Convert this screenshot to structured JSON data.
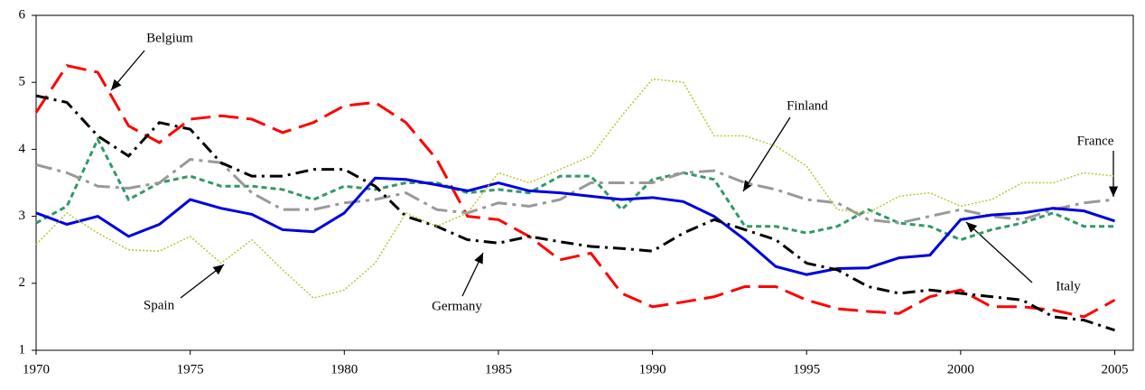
{
  "chart_data": {
    "type": "line",
    "x": [
      1970,
      1971,
      1972,
      1973,
      1974,
      1975,
      1976,
      1977,
      1978,
      1979,
      1980,
      1981,
      1982,
      1983,
      1984,
      1985,
      1986,
      1987,
      1988,
      1989,
      1990,
      1991,
      1992,
      1993,
      1994,
      1995,
      1996,
      1997,
      1998,
      1999,
      2000,
      2001,
      2002,
      2003,
      2004,
      2005
    ],
    "xlim": [
      1970,
      2005.6
    ],
    "xticks": [
      1970,
      1975,
      1980,
      1985,
      1990,
      1995,
      2000,
      2005
    ],
    "ylim": [
      1,
      6
    ],
    "yticks": [
      1,
      2,
      3,
      4,
      5,
      6
    ],
    "series": [
      {
        "name": "Belgium",
        "color": "#ff0000",
        "dash": "22 9",
        "width": 3,
        "values": [
          4.55,
          5.25,
          5.15,
          4.35,
          4.1,
          4.45,
          4.5,
          4.45,
          4.25,
          4.4,
          4.65,
          4.7,
          4.4,
          3.85,
          3.0,
          2.95,
          2.7,
          2.35,
          2.45,
          1.85,
          1.65,
          1.72,
          1.8,
          1.95,
          1.95,
          1.75,
          1.62,
          1.58,
          1.55,
          1.8,
          1.9,
          1.65,
          1.65,
          1.6,
          1.5,
          1.75
        ]
      },
      {
        "name": "Finland",
        "color": "#339966",
        "dash": "6 4",
        "width": 3,
        "values": [
          2.9,
          3.15,
          4.15,
          3.25,
          3.5,
          3.6,
          3.45,
          3.45,
          3.4,
          3.25,
          3.45,
          3.4,
          3.5,
          3.5,
          3.35,
          3.4,
          3.35,
          3.6,
          3.6,
          3.1,
          3.55,
          3.65,
          3.55,
          2.85,
          2.85,
          2.75,
          2.85,
          3.1,
          2.9,
          2.85,
          2.65,
          2.8,
          2.9,
          3.05,
          2.85,
          2.85
        ]
      },
      {
        "name": "France",
        "color": "#999999",
        "dash": "18 6 4 6",
        "width": 3,
        "values": [
          3.77,
          3.65,
          3.45,
          3.42,
          3.5,
          3.85,
          3.8,
          3.35,
          3.1,
          3.1,
          3.2,
          3.25,
          3.35,
          3.1,
          3.05,
          3.2,
          3.15,
          3.25,
          3.5,
          3.5,
          3.5,
          3.65,
          3.68,
          3.5,
          3.4,
          3.25,
          3.2,
          2.95,
          2.9,
          3.0,
          3.1,
          3.0,
          2.95,
          3.1,
          3.2,
          3.25
        ]
      },
      {
        "name": "Italy",
        "color": "#0000dd",
        "dash": "none",
        "width": 3,
        "values": [
          3.05,
          2.88,
          3.0,
          2.7,
          2.88,
          3.25,
          3.12,
          3.03,
          2.8,
          2.77,
          3.05,
          3.57,
          3.55,
          3.47,
          3.38,
          3.5,
          3.38,
          3.35,
          3.3,
          3.25,
          3.28,
          3.22,
          3.0,
          2.65,
          2.25,
          2.13,
          2.22,
          2.23,
          2.38,
          2.42,
          2.95,
          3.02,
          3.05,
          3.12,
          3.08,
          2.93
        ]
      },
      {
        "name": "Germany",
        "color": "#000000",
        "dash": "14 6 3 6",
        "width": 3,
        "values": [
          4.8,
          4.7,
          4.2,
          3.9,
          4.4,
          4.3,
          3.8,
          3.6,
          3.6,
          3.7,
          3.7,
          3.45,
          3.0,
          2.85,
          2.65,
          2.6,
          2.7,
          2.62,
          2.55,
          2.52,
          2.48,
          2.75,
          2.95,
          2.8,
          2.65,
          2.3,
          2.2,
          1.95,
          1.85,
          1.9,
          1.85,
          1.8,
          1.75,
          1.5,
          1.45,
          1.3
        ]
      },
      {
        "name": "Spain",
        "color": "#b8c832",
        "dash": "2 2",
        "width": 1.5,
        "values": [
          2.58,
          3.05,
          2.75,
          2.5,
          2.48,
          2.7,
          2.3,
          2.65,
          2.2,
          1.78,
          1.9,
          2.3,
          3.05,
          2.85,
          3.05,
          3.65,
          3.5,
          3.7,
          3.9,
          4.5,
          5.05,
          5.0,
          4.2,
          4.2,
          4.05,
          3.75,
          3.1,
          3.05,
          3.3,
          3.35,
          3.15,
          3.25,
          3.5,
          3.5,
          3.65,
          3.6
        ]
      }
    ]
  }
}
